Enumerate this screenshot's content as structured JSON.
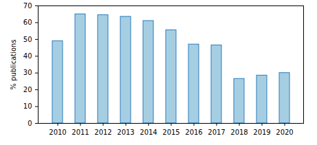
{
  "chart_data": {
    "type": "bar",
    "y_label": "% publications",
    "categories": [
      "2010",
      "2011",
      "2012",
      "2013",
      "2014",
      "2015",
      "2016",
      "2017",
      "2018",
      "2019",
      "2020"
    ],
    "values": [
      49,
      65,
      64.5,
      63.5,
      61,
      55.5,
      47,
      46.5,
      26.5,
      28.5,
      30
    ],
    "color": "#a6cee3",
    "ylim": [
      0,
      70
    ],
    "yticks": [
      0,
      10,
      20,
      30,
      40,
      50,
      60,
      70
    ],
    "grid": false
  }
}
